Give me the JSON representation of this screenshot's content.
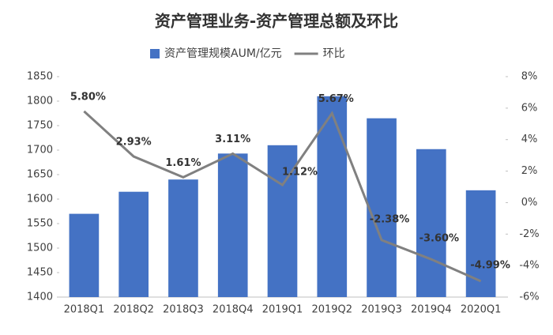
{
  "chart_data": {
    "type": "bar_line",
    "title": "资产管理业务-资产管理总额及环比",
    "categories": [
      "2018Q1",
      "2018Q2",
      "2018Q3",
      "2018Q4",
      "2019Q1",
      "2019Q2",
      "2019Q3",
      "2019Q4",
      "2020Q1"
    ],
    "series": [
      {
        "name": "资产管理规模AUM/亿元",
        "type": "bar",
        "color": "#4472c4",
        "values": [
          1570,
          1615,
          1640,
          1693,
          1710,
          1810,
          1765,
          1702,
          1618
        ]
      },
      {
        "name": "环比",
        "type": "line",
        "axis": "y2",
        "color": "#808080",
        "values": [
          5.8,
          2.93,
          1.61,
          3.11,
          1.12,
          5.67,
          -2.38,
          -3.6,
          -4.99
        ],
        "value_labels": [
          "5.80%",
          "2.93%",
          "1.61%",
          "3.11%",
          "1.12%",
          "5.67%",
          "-2.38%",
          "-3.60%",
          "-4.99%"
        ]
      }
    ],
    "ylim": [
      1400,
      1850
    ],
    "yticks": [
      1400,
      1450,
      1500,
      1550,
      1600,
      1650,
      1700,
      1750,
      1800,
      1850
    ],
    "y2lim": [
      -6,
      8
    ],
    "y2ticks": [
      {
        "value": -6,
        "label": "-6%"
      },
      {
        "value": -4,
        "label": "-4%"
      },
      {
        "value": -2,
        "label": "-2%"
      },
      {
        "value": 0,
        "label": "0%"
      },
      {
        "value": 2,
        "label": "2%"
      },
      {
        "value": 4,
        "label": "4%"
      },
      {
        "value": 6,
        "label": "6%"
      },
      {
        "value": 8,
        "label": "8%"
      }
    ],
    "legend": "top"
  }
}
